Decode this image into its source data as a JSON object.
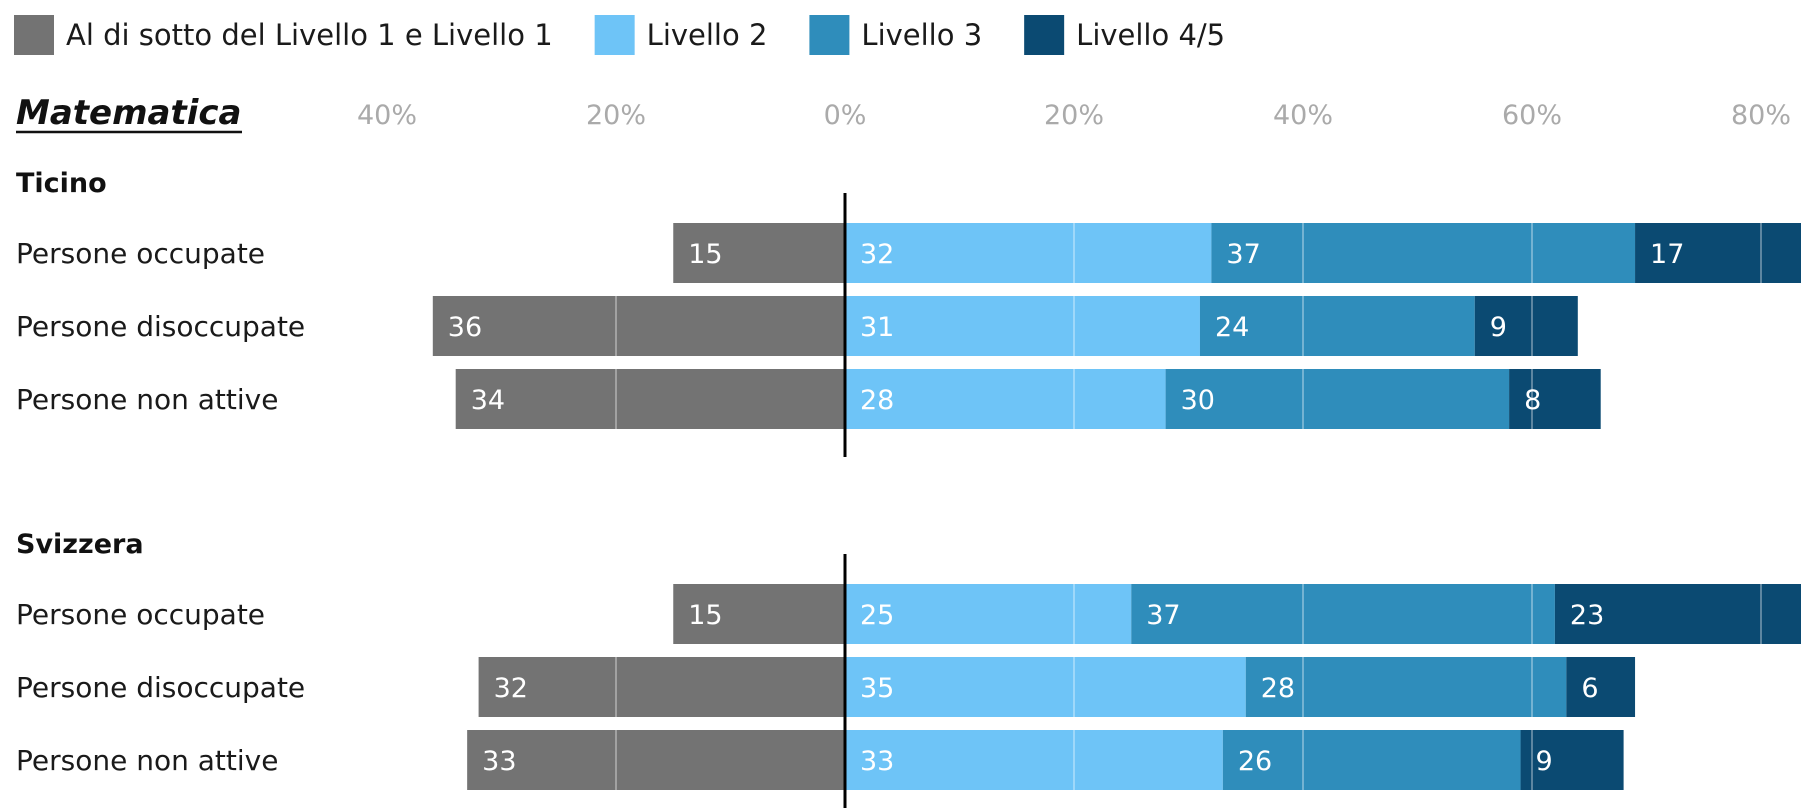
{
  "chart_data": {
    "type": "bar",
    "orientation": "horizontal-diverging",
    "subject": "Matematica",
    "legend_position": "top",
    "grid": true,
    "xlim": [
      -40,
      80
    ],
    "x_ticks": [
      "40%",
      "20%",
      "0%",
      "20%",
      "40%",
      "60%",
      "80%"
    ],
    "series": [
      {
        "name": "Al di sotto del Livello 1 e Livello 1",
        "color": "#737373",
        "side": "negative"
      },
      {
        "name": "Livello 2",
        "color": "#6ec4f7",
        "side": "positive"
      },
      {
        "name": "Livello 3",
        "color": "#2f8dbb",
        "side": "positive"
      },
      {
        "name": "Livello 4/5",
        "color": "#0b4a72",
        "side": "positive"
      }
    ],
    "groups": [
      {
        "name": "Ticino",
        "rows": [
          {
            "label": "Persone occupate",
            "values": [
              15,
              32,
              37,
              17
            ]
          },
          {
            "label": "Persone disoccupate",
            "values": [
              36,
              31,
              24,
              9
            ]
          },
          {
            "label": "Persone non attive",
            "values": [
              34,
              28,
              30,
              8
            ]
          }
        ]
      },
      {
        "name": "Svizzera",
        "rows": [
          {
            "label": "Persone occupate",
            "values": [
              15,
              25,
              37,
              23
            ]
          },
          {
            "label": "Persone disoccupate",
            "values": [
              32,
              35,
              28,
              6
            ]
          },
          {
            "label": "Persone non attive",
            "values": [
              33,
              33,
              26,
              9
            ]
          }
        ]
      }
    ]
  }
}
